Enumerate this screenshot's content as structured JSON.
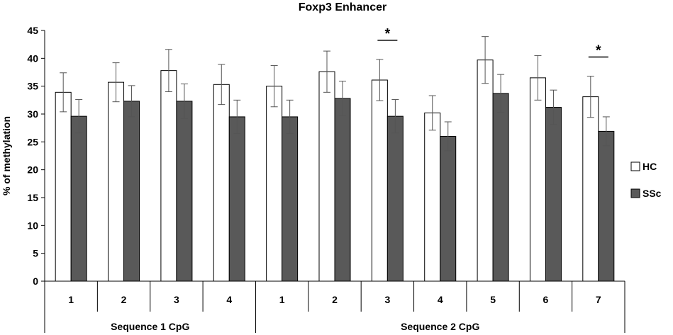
{
  "chart_data": {
    "type": "bar",
    "title": "Foxp3 Enhancer",
    "ylabel": "% of methylation",
    "xlabel": "",
    "ylim": [
      0,
      45
    ],
    "yticks": [
      0,
      5,
      10,
      15,
      20,
      25,
      30,
      35,
      40,
      45
    ],
    "grid": false,
    "legend_position": "right",
    "categories": [
      "1",
      "2",
      "3",
      "4",
      "1",
      "2",
      "3",
      "4",
      "5",
      "6",
      "7"
    ],
    "groups": [
      {
        "label": "Sequence 1 CpG",
        "count": 4
      },
      {
        "label": "Sequence 2 CpG",
        "count": 7
      }
    ],
    "series": [
      {
        "name": "HC",
        "color": "#ffffff",
        "values": [
          33.9,
          35.7,
          37.8,
          35.3,
          35.0,
          37.6,
          36.1,
          30.2,
          39.7,
          36.5,
          33.1
        ],
        "errors": [
          3.5,
          3.5,
          3.8,
          3.6,
          3.7,
          3.7,
          3.7,
          3.1,
          4.2,
          4.0,
          3.7
        ]
      },
      {
        "name": "SSc",
        "color": "#595959",
        "values": [
          29.6,
          32.3,
          32.3,
          29.5,
          29.5,
          32.8,
          29.6,
          26.0,
          33.7,
          31.2,
          26.9
        ],
        "errors": [
          3.0,
          2.8,
          3.1,
          3.0,
          3.0,
          3.1,
          3.0,
          2.6,
          3.4,
          3.1,
          2.6
        ]
      }
    ],
    "annotations": [
      {
        "category_index": 6,
        "text": "*"
      },
      {
        "category_index": 10,
        "text": "*"
      }
    ]
  }
}
